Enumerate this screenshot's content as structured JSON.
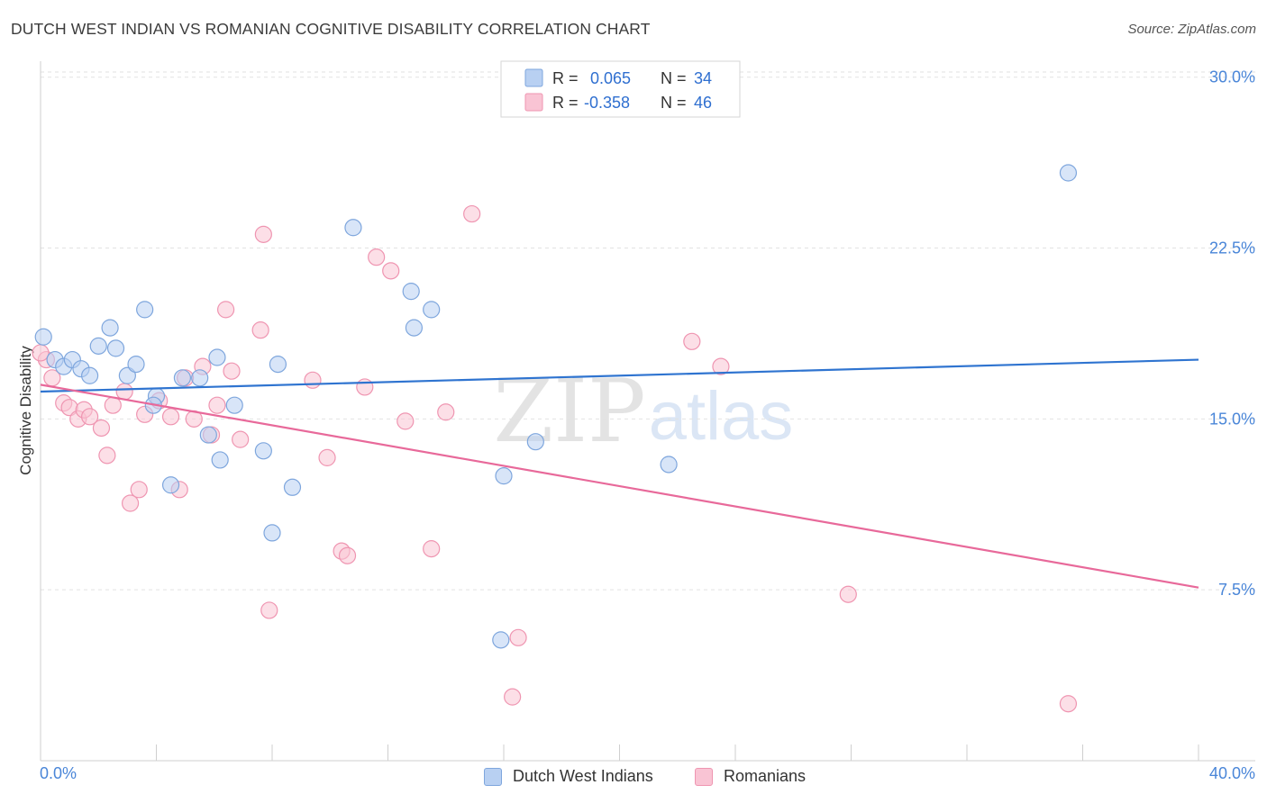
{
  "header": {
    "title": "DUTCH WEST INDIAN VS ROMANIAN COGNITIVE DISABILITY CORRELATION CHART",
    "source": "Source: ZipAtlas.com"
  },
  "watermark": {
    "zip": "ZIP",
    "atlas": "atlas"
  },
  "colors": {
    "blue_fill": "#b8d0f2",
    "blue_stroke": "#7ea6dd",
    "blue_line": "#2f74d0",
    "pink_fill": "#f9c4d4",
    "pink_stroke": "#ef95b1",
    "pink_line": "#e8699a",
    "value_text": "#2f6fd0",
    "axis_text": "#4a86d8"
  },
  "legend_top": [
    {
      "r_label": "R =",
      "r_value": "0.065",
      "n_label": "N =",
      "n_value": "34"
    },
    {
      "r_label": "R =",
      "r_value": "-0.358",
      "n_label": "N =",
      "n_value": "46"
    }
  ],
  "legend_bottom": [
    "Dutch West Indians",
    "Romanians"
  ],
  "chart_data": {
    "type": "scatter",
    "title": "DUTCH WEST INDIAN VS ROMANIAN COGNITIVE DISABILITY CORRELATION CHART",
    "xlabel": "",
    "ylabel": "Cognitive Disability",
    "xlim": [
      0,
      40
    ],
    "ylim": [
      0,
      30.7
    ],
    "x_tick_labels": [
      "0.0%",
      "40.0%"
    ],
    "y_ticks": [
      7.5,
      15.0,
      22.5,
      30.0
    ],
    "y_tick_labels": [
      "7.5%",
      "15.0%",
      "22.5%",
      "30.0%"
    ],
    "grid": true,
    "legend_position": "top-center",
    "series": [
      {
        "name": "Dutch West Indians",
        "R": 0.065,
        "N": 34,
        "trend": [
          [
            0,
            16.2
          ],
          [
            40,
            17.6
          ]
        ],
        "points": [
          [
            0.1,
            18.6
          ],
          [
            0.5,
            17.6
          ],
          [
            0.8,
            17.3
          ],
          [
            1.1,
            17.6
          ],
          [
            1.4,
            17.2
          ],
          [
            1.7,
            16.9
          ],
          [
            2.0,
            18.2
          ],
          [
            2.4,
            19.0
          ],
          [
            2.6,
            18.1
          ],
          [
            3.0,
            16.9
          ],
          [
            3.3,
            17.4
          ],
          [
            3.6,
            19.8
          ],
          [
            4.0,
            16.0
          ],
          [
            3.9,
            15.6
          ],
          [
            4.5,
            12.1
          ],
          [
            4.9,
            16.8
          ],
          [
            5.5,
            16.8
          ],
          [
            5.8,
            14.3
          ],
          [
            6.1,
            17.7
          ],
          [
            6.2,
            13.2
          ],
          [
            6.7,
            15.6
          ],
          [
            7.7,
            13.6
          ],
          [
            8.2,
            17.4
          ],
          [
            8.7,
            12.0
          ],
          [
            8.0,
            10.0
          ],
          [
            10.8,
            23.4
          ],
          [
            12.8,
            20.6
          ],
          [
            12.9,
            19.0
          ],
          [
            13.5,
            19.8
          ],
          [
            15.9,
            5.3
          ],
          [
            16.0,
            12.5
          ],
          [
            17.1,
            14.0
          ],
          [
            21.7,
            13.0
          ],
          [
            35.5,
            25.8
          ]
        ]
      },
      {
        "name": "Romanians",
        "R": -0.358,
        "N": 46,
        "trend": [
          [
            0,
            16.5
          ],
          [
            40,
            7.6
          ]
        ],
        "points": [
          [
            0.2,
            17.6
          ],
          [
            0.4,
            16.8
          ],
          [
            0.8,
            15.7
          ],
          [
            1.0,
            15.5
          ],
          [
            1.3,
            15.0
          ],
          [
            1.5,
            15.4
          ],
          [
            1.7,
            15.1
          ],
          [
            2.1,
            14.6
          ],
          [
            2.3,
            13.4
          ],
          [
            2.5,
            15.6
          ],
          [
            2.9,
            16.2
          ],
          [
            3.1,
            11.3
          ],
          [
            3.4,
            11.9
          ],
          [
            3.6,
            15.2
          ],
          [
            4.1,
            15.8
          ],
          [
            4.5,
            15.1
          ],
          [
            4.8,
            11.9
          ],
          [
            5.0,
            16.8
          ],
          [
            5.3,
            15.0
          ],
          [
            5.6,
            17.3
          ],
          [
            5.9,
            14.3
          ],
          [
            6.1,
            15.6
          ],
          [
            6.4,
            19.8
          ],
          [
            6.6,
            17.1
          ],
          [
            6.9,
            14.1
          ],
          [
            7.6,
            18.9
          ],
          [
            7.7,
            23.1
          ],
          [
            7.9,
            6.6
          ],
          [
            9.4,
            16.7
          ],
          [
            9.9,
            13.3
          ],
          [
            10.4,
            9.2
          ],
          [
            10.6,
            9.0
          ],
          [
            11.2,
            16.4
          ],
          [
            11.6,
            22.1
          ],
          [
            12.1,
            21.5
          ],
          [
            12.6,
            14.9
          ],
          [
            13.5,
            9.3
          ],
          [
            14.0,
            15.3
          ],
          [
            14.9,
            24.0
          ],
          [
            16.3,
            2.8
          ],
          [
            16.5,
            5.4
          ],
          [
            22.5,
            18.4
          ],
          [
            23.5,
            17.3
          ],
          [
            27.9,
            7.3
          ],
          [
            35.5,
            2.5
          ],
          [
            0.0,
            17.9
          ]
        ]
      }
    ]
  }
}
